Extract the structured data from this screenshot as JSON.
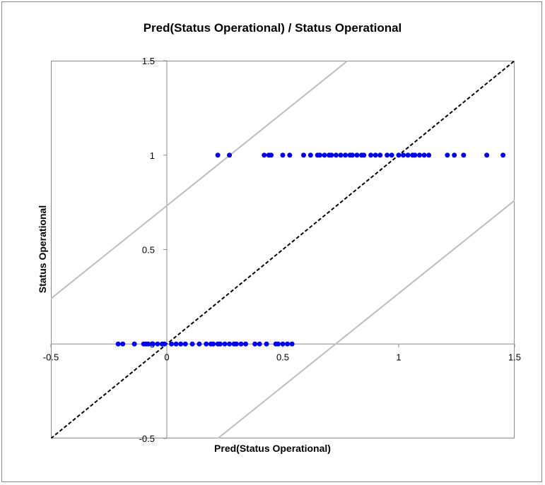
{
  "chart_data": {
    "type": "scatter",
    "title": "Pred(Status Operational) / Status Operational",
    "xlabel": "Pred(Status Operational)",
    "ylabel": "Status Operational",
    "xlim": [
      -0.5,
      1.5
    ],
    "ylim": [
      -0.5,
      1.5
    ],
    "x_ticks": [
      "-0.5",
      "0",
      "0.5",
      "1",
      "1.5"
    ],
    "y_ticks": [
      "-0.5",
      "0",
      "0.5",
      "1",
      "1.5"
    ],
    "series": [
      {
        "marker_color": "#0000ee",
        "points": [
          [
            -0.21,
            0
          ],
          [
            -0.19,
            0
          ],
          [
            -0.14,
            0
          ],
          [
            -0.1,
            0
          ],
          [
            -0.09,
            0
          ],
          [
            -0.08,
            0
          ],
          [
            -0.06,
            0
          ],
          [
            -0.04,
            0
          ],
          [
            -0.02,
            0
          ],
          [
            -0.01,
            0
          ],
          [
            0.02,
            0
          ],
          [
            0.04,
            0
          ],
          [
            0.06,
            0
          ],
          [
            0.08,
            0
          ],
          [
            0.11,
            0
          ],
          [
            0.14,
            0
          ],
          [
            0.17,
            0
          ],
          [
            0.19,
            0
          ],
          [
            0.2,
            0
          ],
          [
            0.22,
            0
          ],
          [
            0.23,
            0
          ],
          [
            0.25,
            0
          ],
          [
            0.27,
            0
          ],
          [
            0.29,
            0
          ],
          [
            0.3,
            0
          ],
          [
            0.32,
            0
          ],
          [
            0.34,
            0
          ],
          [
            0.38,
            0
          ],
          [
            0.4,
            0
          ],
          [
            0.43,
            0
          ],
          [
            0.47,
            0
          ],
          [
            0.48,
            0
          ],
          [
            0.5,
            0
          ],
          [
            0.52,
            0
          ],
          [
            0.54,
            0
          ],
          [
            0.22,
            1
          ],
          [
            0.27,
            1
          ],
          [
            0.42,
            1
          ],
          [
            0.44,
            1
          ],
          [
            0.45,
            1
          ],
          [
            0.5,
            1
          ],
          [
            0.53,
            1
          ],
          [
            0.59,
            1
          ],
          [
            0.62,
            1
          ],
          [
            0.65,
            1
          ],
          [
            0.66,
            1
          ],
          [
            0.68,
            1
          ],
          [
            0.7,
            1
          ],
          [
            0.71,
            1
          ],
          [
            0.73,
            1
          ],
          [
            0.75,
            1
          ],
          [
            0.77,
            1
          ],
          [
            0.79,
            1
          ],
          [
            0.8,
            1
          ],
          [
            0.82,
            1
          ],
          [
            0.84,
            1
          ],
          [
            0.85,
            1
          ],
          [
            0.88,
            1
          ],
          [
            0.9,
            1
          ],
          [
            0.92,
            1
          ],
          [
            0.95,
            1
          ],
          [
            0.97,
            1
          ],
          [
            1.0,
            1
          ],
          [
            1.02,
            1
          ],
          [
            1.04,
            1
          ],
          [
            1.06,
            1
          ],
          [
            1.07,
            1
          ],
          [
            1.09,
            1
          ],
          [
            1.11,
            1
          ],
          [
            1.13,
            1
          ],
          [
            1.21,
            1
          ],
          [
            1.24,
            1
          ],
          [
            1.28,
            1
          ],
          [
            1.38,
            1
          ],
          [
            1.45,
            1
          ]
        ]
      }
    ],
    "reference_lines": [
      {
        "style": "dashed",
        "color": "#000000",
        "points": [
          [
            -0.5,
            -0.5
          ],
          [
            1.5,
            1.5
          ]
        ]
      },
      {
        "style": "solid",
        "color": "#bdbdbd",
        "points": [
          [
            -0.5,
            0.24
          ],
          [
            0.78,
            1.5
          ]
        ]
      },
      {
        "style": "solid",
        "color": "#bdbdbd",
        "points": [
          [
            0.22,
            -0.5
          ],
          [
            1.5,
            0.76
          ]
        ]
      }
    ]
  }
}
